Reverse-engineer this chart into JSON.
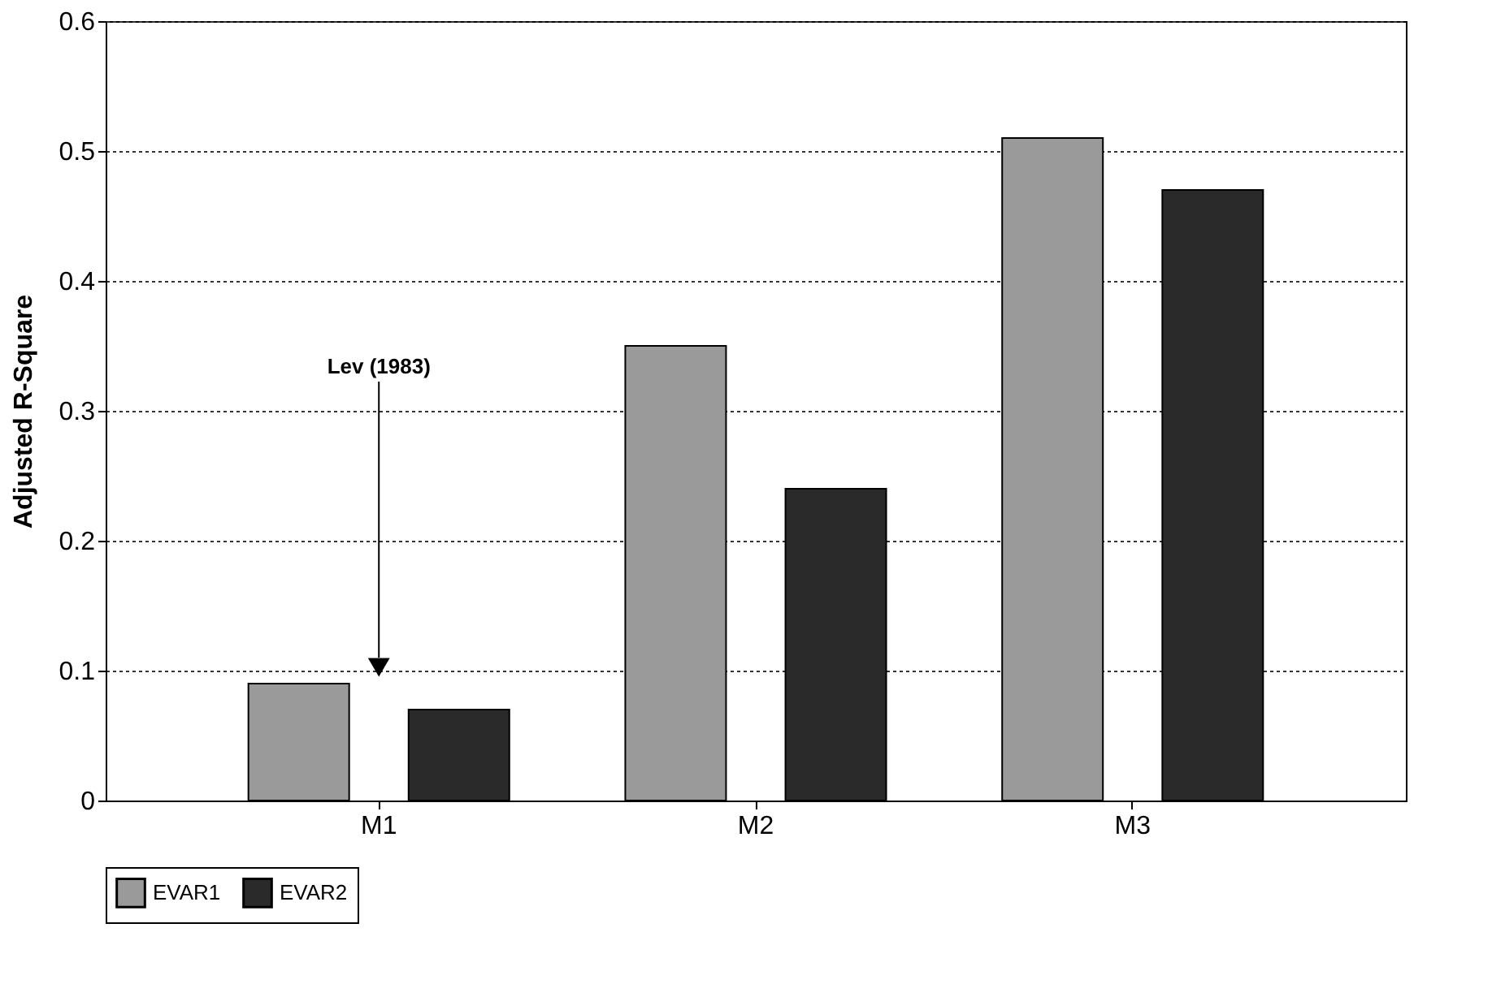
{
  "chart_data": {
    "type": "bar",
    "ylabel": "Adjusted R-Square",
    "categories": [
      "M1",
      "M2",
      "M3"
    ],
    "series": [
      {
        "name": "EVAR1",
        "color": "#9a9a9a",
        "values": [
          0.09,
          0.35,
          0.51
        ]
      },
      {
        "name": "EVAR2",
        "color": "#2a2a2a",
        "values": [
          0.07,
          0.24,
          0.47
        ]
      }
    ],
    "ylim": [
      0,
      0.6
    ],
    "yticks": [
      0,
      0.1,
      0.2,
      0.3,
      0.4,
      0.5,
      0.6
    ],
    "grid": "y",
    "legend": "bottom",
    "annotations": [
      "Lev (1983)"
    ]
  }
}
